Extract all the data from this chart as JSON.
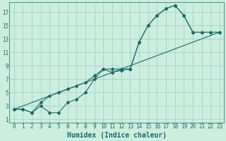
{
  "title": "",
  "xlabel": "Humidex (Indice chaleur)",
  "bg_color": "#cceedd",
  "line_color": "#1a6b6b",
  "grid_color": "#99cccc",
  "xlim": [
    -0.5,
    23.5
  ],
  "ylim": [
    0.5,
    18.5
  ],
  "xticks": [
    0,
    1,
    2,
    3,
    4,
    5,
    6,
    7,
    8,
    9,
    10,
    11,
    12,
    13,
    14,
    15,
    16,
    17,
    18,
    19,
    20,
    21,
    22,
    23
  ],
  "yticks": [
    1,
    3,
    5,
    7,
    9,
    11,
    13,
    15,
    17
  ],
  "line1_x": [
    0,
    1,
    2,
    3,
    4,
    5,
    6,
    7,
    8,
    9,
    10,
    11,
    12,
    13,
    14,
    15,
    16,
    17,
    18,
    19,
    20,
    21,
    22,
    23
  ],
  "line1_y": [
    2.5,
    2.5,
    2.0,
    3.5,
    4.5,
    5.0,
    5.5,
    6.0,
    6.5,
    7.5,
    8.5,
    8.0,
    8.3,
    8.5,
    12.5,
    15.0,
    16.5,
    17.5,
    18.0,
    16.5,
    14.0,
    14.0,
    14.0,
    14.0
  ],
  "line2_x": [
    0,
    1,
    2,
    3,
    4,
    5,
    6,
    7,
    8,
    9,
    10,
    11,
    12,
    13,
    14,
    15,
    16,
    17,
    18,
    19,
    20,
    21,
    22,
    23
  ],
  "line2_y": [
    2.5,
    2.5,
    2.0,
    3.0,
    2.0,
    2.0,
    3.5,
    4.0,
    5.0,
    7.0,
    8.5,
    8.5,
    8.5,
    8.5,
    12.5,
    15.0,
    16.5,
    17.5,
    18.0,
    16.5,
    14.0,
    14.0,
    14.0,
    14.0
  ],
  "line3_x": [
    0,
    23
  ],
  "line3_y": [
    2.5,
    14.0
  ],
  "marker_size": 2.0,
  "linewidth": 0.8,
  "tick_fontsize": 5.5,
  "xlabel_fontsize": 7
}
